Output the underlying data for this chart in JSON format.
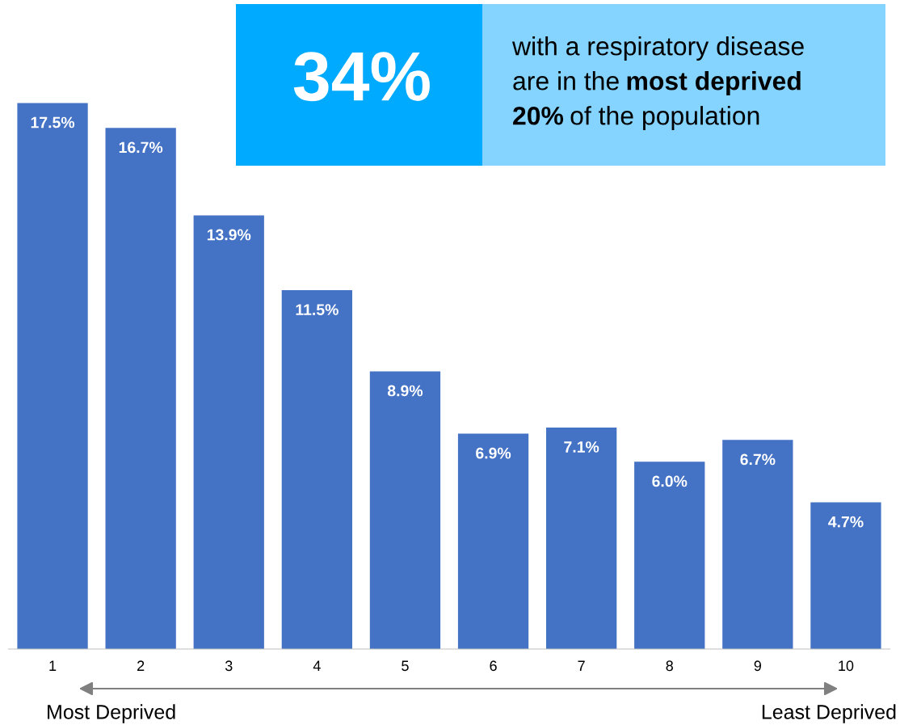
{
  "chart_data": {
    "type": "bar",
    "categories": [
      "1",
      "2",
      "3",
      "4",
      "5",
      "6",
      "7",
      "8",
      "9",
      "10"
    ],
    "values": [
      17.5,
      16.7,
      13.9,
      11.5,
      8.9,
      6.9,
      7.1,
      6.0,
      6.7,
      4.7
    ],
    "value_labels": [
      "17.5%",
      "16.7%",
      "13.9%",
      "11.5%",
      "8.9%",
      "6.9%",
      "7.1%",
      "6.0%",
      "6.7%",
      "4.7%"
    ],
    "color": "#4472c4",
    "ylim": [
      0,
      20.8
    ],
    "tick_labels": "x",
    "grid": false,
    "legend": false,
    "annotations": [
      "34%",
      "with a respiratory disease",
      "are in the",
      "most deprived",
      "20%",
      "of the population",
      "Most Deprived",
      "Least Deprived"
    ]
  }
}
